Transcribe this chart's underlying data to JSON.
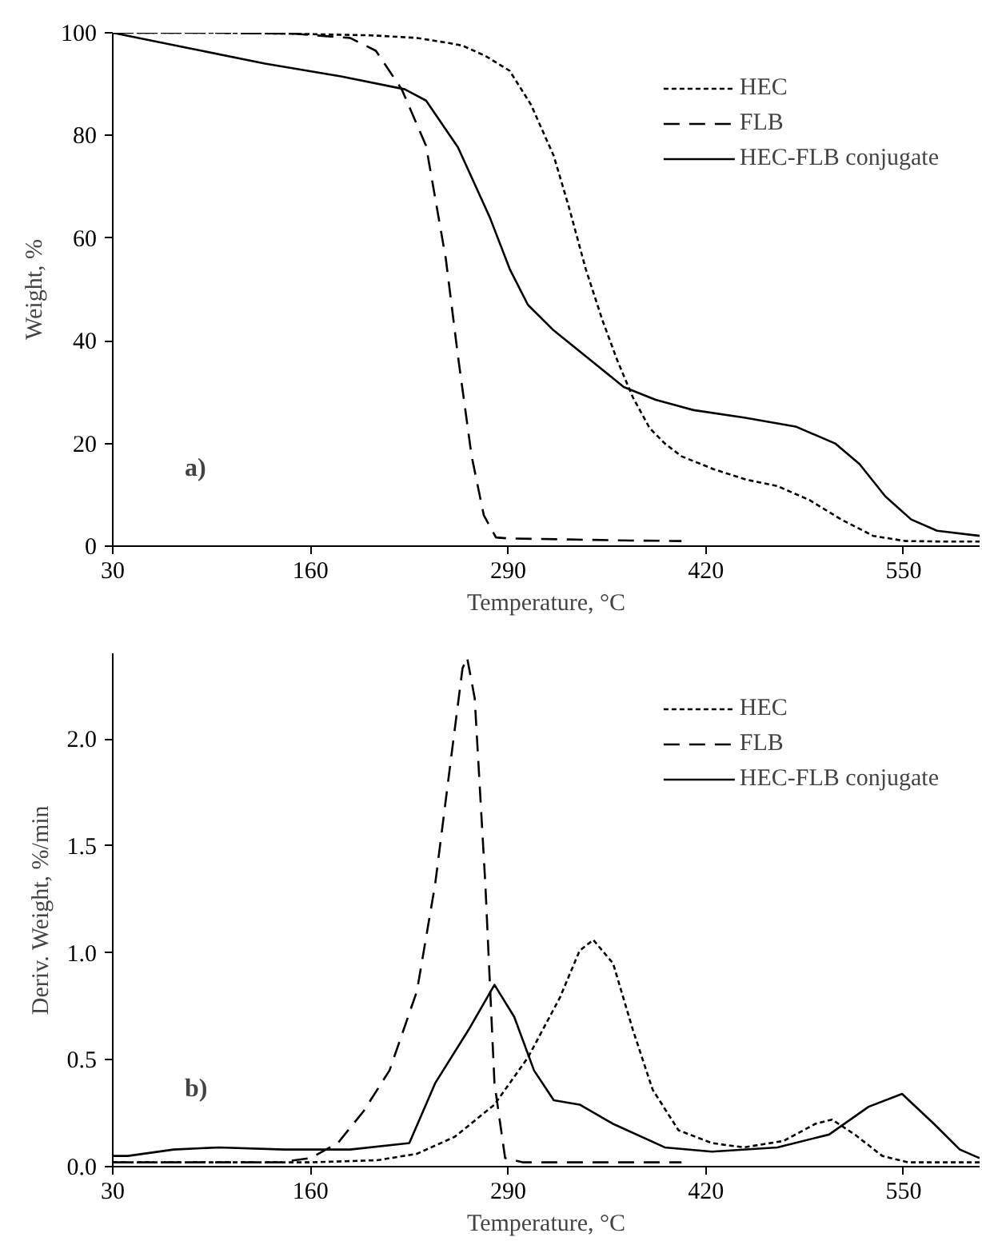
{
  "chart_data": [
    {
      "type": "line",
      "xlabel": "Temperature, °C",
      "ylabel": "Weight, %",
      "annotations": [
        "a)"
      ],
      "xlim": [
        30,
        600
      ],
      "ylim": [
        0,
        100
      ],
      "xticks": [
        30,
        160,
        290,
        420,
        550
      ],
      "yticks": [
        0,
        20,
        40,
        60,
        80,
        100
      ],
      "grid": false,
      "legend": "top right",
      "series": [
        {
          "name": "HEC",
          "color": "#000000",
          "line_style": "dotted",
          "x": [
            30,
            100,
            150,
            200,
            230,
            251,
            260,
            275,
            291,
            305,
            320,
            330,
            341,
            352,
            362,
            372,
            383,
            393,
            404,
            425,
            446,
            467,
            488,
            509,
            530,
            551,
            575,
            600
          ],
          "values": [
            100,
            100,
            99.8,
            99.5,
            99,
            98,
            97.5,
            95.5,
            92.6,
            86,
            76,
            66,
            54,
            44,
            36,
            29,
            23,
            20,
            17.5,
            15,
            13,
            11.7,
            9,
            5.2,
            2,
            1,
            0.9,
            0.9
          ]
        },
        {
          "name": "FLB",
          "color": "#000000",
          "line_style": "dashed",
          "x": [
            30,
            100,
            150,
            186,
            203,
            220,
            236,
            249,
            257,
            266,
            274,
            282,
            290,
            330,
            370,
            404
          ],
          "values": [
            100,
            100,
            99.8,
            99,
            96.5,
            89,
            78,
            56,
            37,
            17.5,
            6,
            1.7,
            1.5,
            1.3,
            1.1,
            1.0
          ]
        },
        {
          "name": "HEC-FLB conjugate",
          "color": "#000000",
          "line_style": "solid",
          "x": [
            30,
            80,
            130,
            180,
            222,
            236,
            257,
            278,
            291,
            303,
            320,
            341,
            366,
            387,
            412,
            446,
            479,
            505,
            521,
            538,
            555,
            572,
            600
          ],
          "values": [
            100,
            97,
            94,
            91.5,
            89,
            86.8,
            77.7,
            64,
            54,
            47,
            42,
            37,
            31,
            28.5,
            26.5,
            25,
            23.3,
            20,
            16,
            9.7,
            5.2,
            3,
            2
          ]
        }
      ]
    },
    {
      "type": "line",
      "xlabel": "Temperature, °C",
      "ylabel": "Deriv. Weight, %/min",
      "annotations": [
        "b)"
      ],
      "xlim": [
        30,
        600
      ],
      "ylim": [
        0,
        2.4
      ],
      "xticks": [
        30,
        160,
        290,
        420,
        550
      ],
      "yticks": [
        {
          "value": 0,
          "label": "0.0"
        },
        0.5,
        {
          "value": 1,
          "label": "1.0"
        },
        1.5,
        {
          "value": 2,
          "label": "2.0"
        }
      ],
      "grid": false,
      "legend": "top right",
      "series": [
        {
          "name": "HEC",
          "color": "#000000",
          "line_style": "dotted",
          "x": [
            30,
            100,
            160,
            204,
            230,
            255,
            281,
            303,
            324,
            337,
            346,
            359,
            372,
            385,
            402,
            424,
            445,
            471,
            492,
            503,
            518,
            536,
            553,
            575,
            600
          ],
          "values": [
            0.02,
            0.02,
            0.02,
            0.03,
            0.06,
            0.14,
            0.29,
            0.51,
            0.79,
            1.01,
            1.06,
            0.95,
            0.64,
            0.36,
            0.17,
            0.11,
            0.09,
            0.12,
            0.2,
            0.22,
            0.15,
            0.05,
            0.02,
            0.02,
            0.02
          ]
        },
        {
          "name": "FLB",
          "color": "#000000",
          "line_style": "dashed",
          "x": [
            30,
            100,
            140,
            160,
            178,
            195,
            212,
            230,
            242,
            253,
            260,
            263,
            268,
            275,
            281,
            288,
            300,
            350,
            404
          ],
          "values": [
            0.02,
            0.02,
            0.02,
            0.04,
            0.11,
            0.26,
            0.45,
            0.82,
            1.32,
            1.94,
            2.33,
            2.38,
            2.19,
            1.32,
            0.39,
            0.04,
            0.02,
            0.02,
            0.02
          ]
        },
        {
          "name": "HEC-FLB conjugate",
          "color": "#000000",
          "line_style": "solid",
          "x": [
            30,
            40,
            70,
            100,
            143,
            186,
            225,
            242,
            264,
            281,
            294,
            307,
            320,
            337,
            359,
            393,
            424,
            467,
            501,
            527,
            549,
            570,
            587,
            600
          ],
          "values": [
            0.05,
            0.05,
            0.08,
            0.09,
            0.08,
            0.08,
            0.11,
            0.39,
            0.64,
            0.85,
            0.7,
            0.45,
            0.31,
            0.29,
            0.2,
            0.09,
            0.07,
            0.09,
            0.15,
            0.28,
            0.34,
            0.2,
            0.08,
            0.04
          ]
        }
      ]
    }
  ]
}
